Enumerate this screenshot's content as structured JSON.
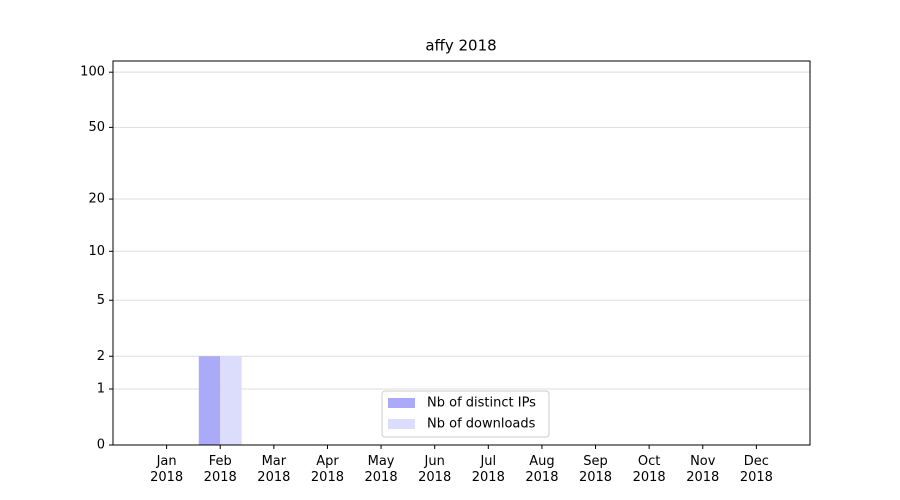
{
  "chart_data": {
    "type": "bar",
    "title": "affy 2018",
    "categories": [
      "Jan\n2018",
      "Feb\n2018",
      "Mar\n2018",
      "Apr\n2018",
      "May\n2018",
      "Jun\n2018",
      "Jul\n2018",
      "Aug\n2018",
      "Sep\n2018",
      "Oct\n2018",
      "Nov\n2018",
      "Dec\n2018"
    ],
    "series": [
      {
        "name": "Nb of distinct IPs",
        "color": "#aaaaf8",
        "values": [
          0,
          2,
          0,
          0,
          0,
          0,
          0,
          0,
          0,
          0,
          0,
          0
        ]
      },
      {
        "name": "Nb of downloads",
        "color": "#dcdcfc",
        "values": [
          0,
          2,
          0,
          0,
          0,
          0,
          0,
          0,
          0,
          0,
          0,
          0
        ]
      }
    ],
    "yscale": "log1p",
    "ylim": [
      0,
      115
    ],
    "yticks": [
      0,
      1,
      2,
      5,
      10,
      20,
      50,
      100
    ],
    "grid": true,
    "legend": "lower center"
  }
}
